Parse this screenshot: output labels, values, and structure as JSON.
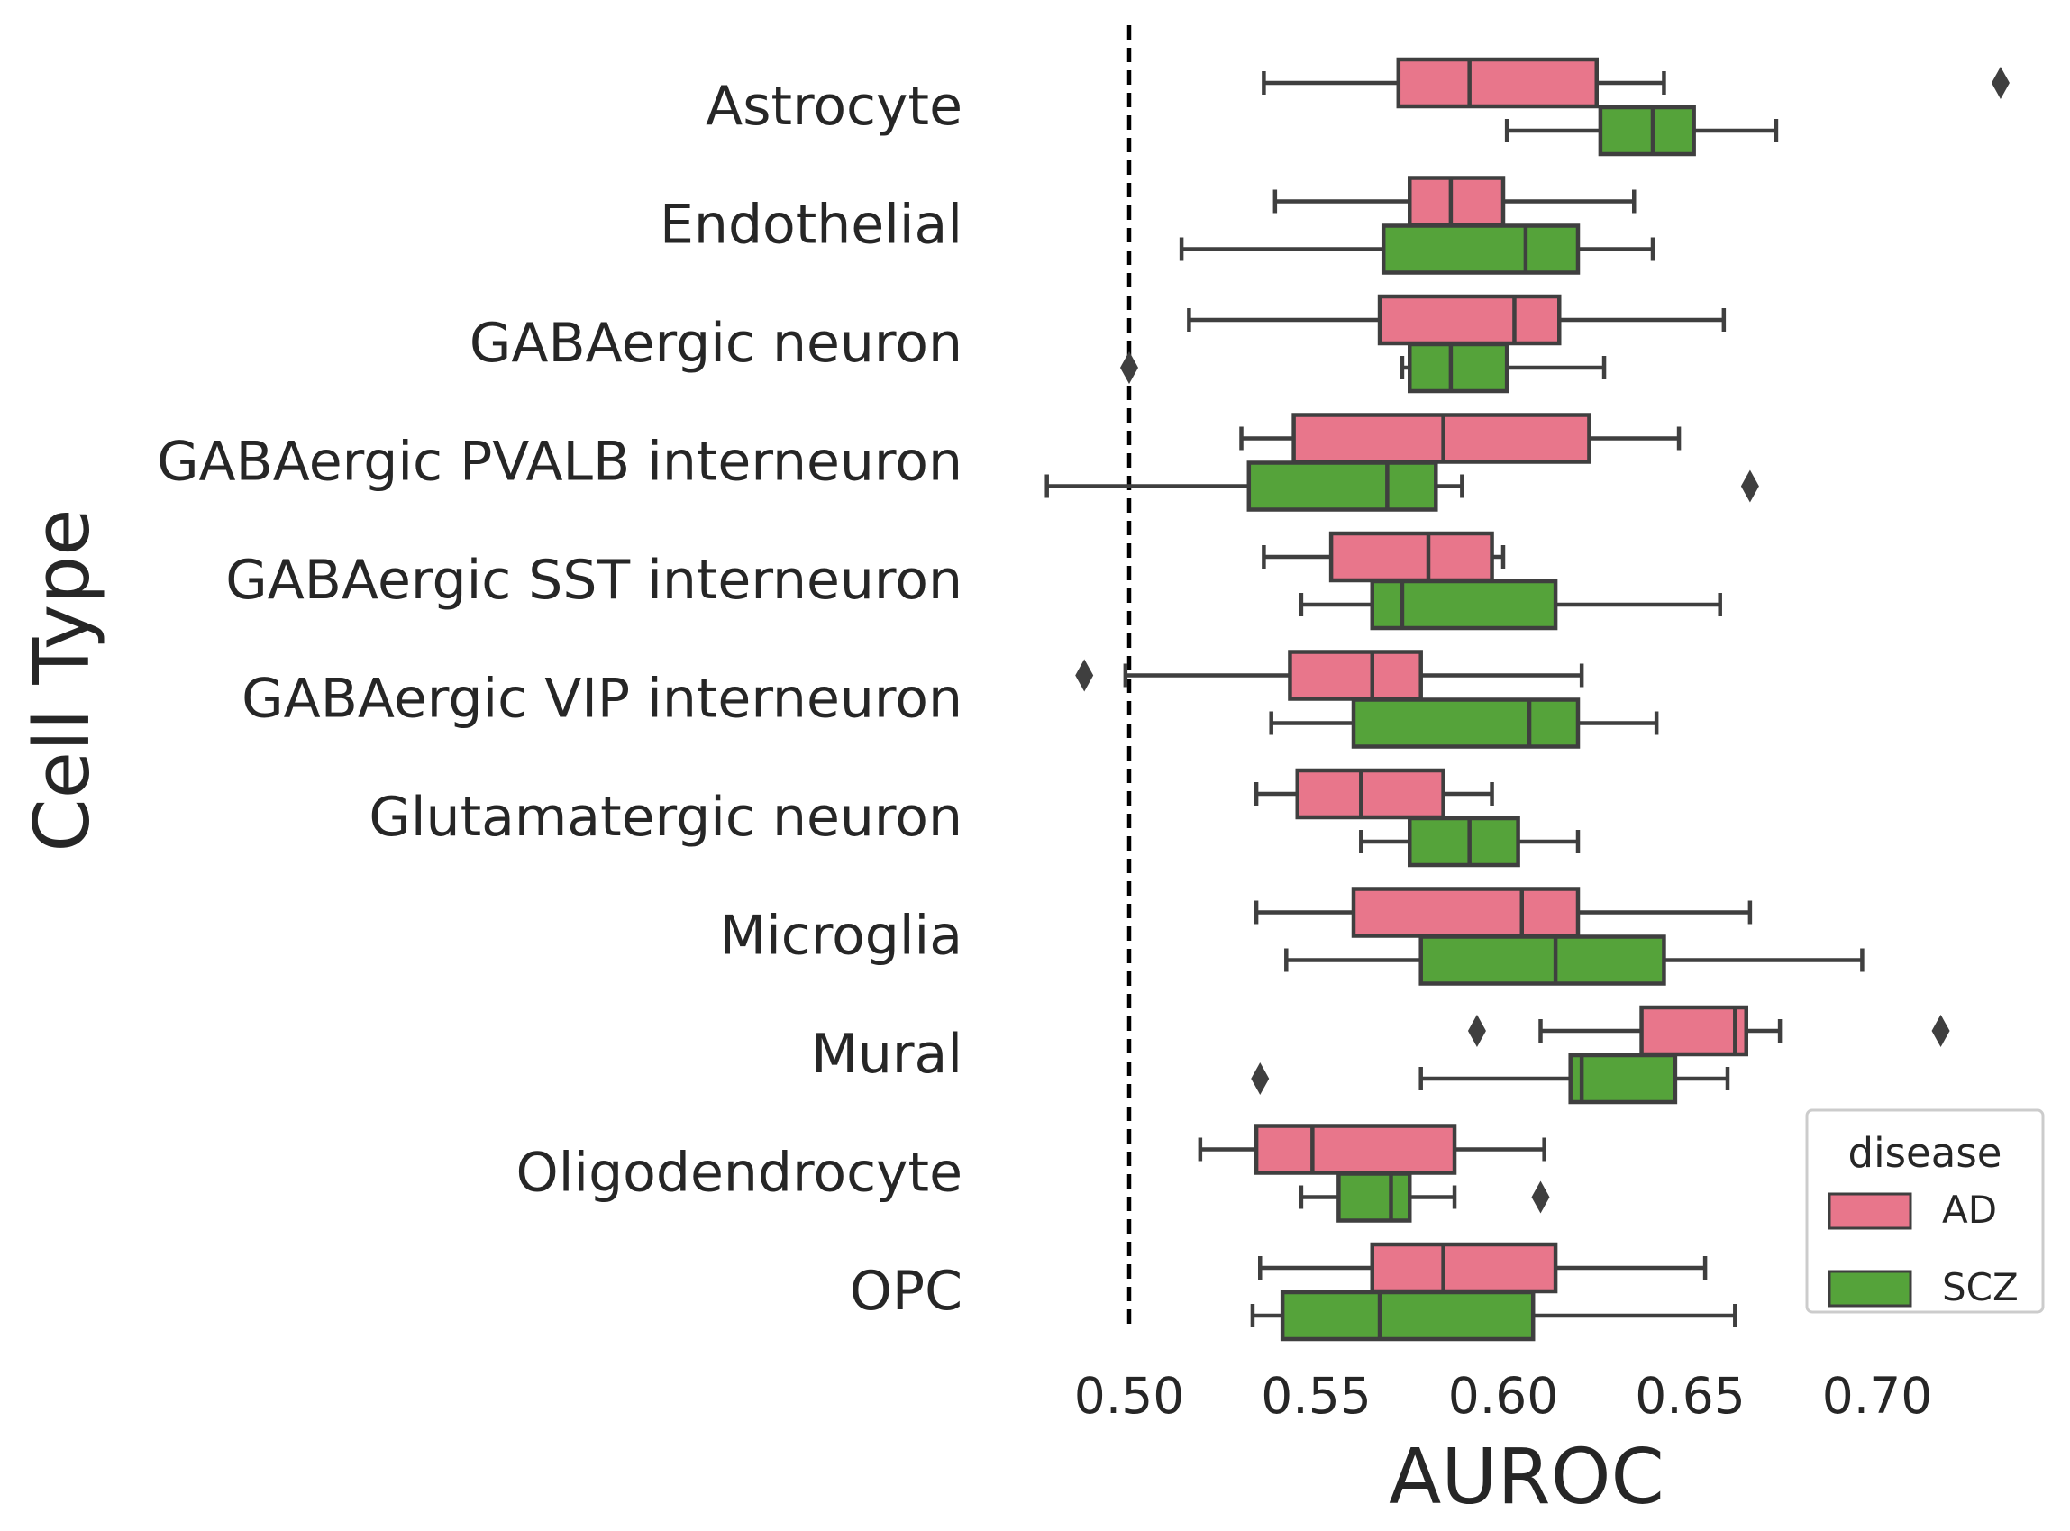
{
  "chart_data": {
    "type": "box",
    "orientation": "horizontal",
    "xlabel": "AUROC",
    "ylabel": "Cell Type",
    "xlim": [
      0.475,
      0.74
    ],
    "xticks": [
      "0.50",
      "0.55",
      "0.60",
      "0.65",
      "0.70"
    ],
    "reference_line": {
      "x": 0.5,
      "style": "dashed"
    },
    "grid": false,
    "categories": [
      "Astrocyte",
      "Endothelial",
      "GABAergic neuron",
      "GABAergic PVALB interneuron",
      "GABAergic SST interneuron",
      "GABAergic VIP interneuron",
      "Glutamatergic neuron",
      "Microglia",
      "Mural",
      "Oligodendrocyte",
      "OPC"
    ],
    "legend": {
      "title": "disease",
      "position": "lower-right"
    },
    "series": [
      {
        "name": "AD",
        "color": "#E8768B",
        "boxes": [
          {
            "whislo": 0.536,
            "q1": 0.572,
            "med": 0.591,
            "q3": 0.625,
            "whishi": 0.643,
            "fliers": [
              0.733
            ]
          },
          {
            "whislo": 0.539,
            "q1": 0.575,
            "med": 0.586,
            "q3": 0.6,
            "whishi": 0.635,
            "fliers": []
          },
          {
            "whislo": 0.516,
            "q1": 0.567,
            "med": 0.603,
            "q3": 0.615,
            "whishi": 0.659,
            "fliers": []
          },
          {
            "whislo": 0.53,
            "q1": 0.544,
            "med": 0.584,
            "q3": 0.623,
            "whishi": 0.647,
            "fliers": []
          },
          {
            "whislo": 0.536,
            "q1": 0.554,
            "med": 0.58,
            "q3": 0.597,
            "whishi": 0.6,
            "fliers": []
          },
          {
            "whislo": 0.499,
            "q1": 0.543,
            "med": 0.565,
            "q3": 0.578,
            "whishi": 0.621,
            "fliers": [
              0.488
            ]
          },
          {
            "whislo": 0.534,
            "q1": 0.545,
            "med": 0.562,
            "q3": 0.584,
            "whishi": 0.597,
            "fliers": []
          },
          {
            "whislo": 0.534,
            "q1": 0.56,
            "med": 0.605,
            "q3": 0.62,
            "whishi": 0.666,
            "fliers": []
          },
          {
            "whislo": 0.61,
            "q1": 0.637,
            "med": 0.662,
            "q3": 0.665,
            "whishi": 0.674,
            "fliers": [
              0.593,
              0.717
            ]
          },
          {
            "whislo": 0.519,
            "q1": 0.534,
            "med": 0.549,
            "q3": 0.587,
            "whishi": 0.611,
            "fliers": []
          },
          {
            "whislo": 0.535,
            "q1": 0.565,
            "med": 0.584,
            "q3": 0.614,
            "whishi": 0.654,
            "fliers": []
          }
        ]
      },
      {
        "name": "SCZ",
        "color": "#55A33A",
        "boxes": [
          {
            "whislo": 0.601,
            "q1": 0.626,
            "med": 0.64,
            "q3": 0.651,
            "whishi": 0.673,
            "fliers": []
          },
          {
            "whislo": 0.514,
            "q1": 0.568,
            "med": 0.606,
            "q3": 0.62,
            "whishi": 0.64,
            "fliers": []
          },
          {
            "whislo": 0.573,
            "q1": 0.575,
            "med": 0.586,
            "q3": 0.601,
            "whishi": 0.627,
            "fliers": [
              0.5
            ]
          },
          {
            "whislo": 0.478,
            "q1": 0.532,
            "med": 0.569,
            "q3": 0.582,
            "whishi": 0.589,
            "fliers": [
              0.666
            ]
          },
          {
            "whislo": 0.546,
            "q1": 0.565,
            "med": 0.573,
            "q3": 0.614,
            "whishi": 0.658,
            "fliers": []
          },
          {
            "whislo": 0.538,
            "q1": 0.56,
            "med": 0.607,
            "q3": 0.62,
            "whishi": 0.641,
            "fliers": []
          },
          {
            "whislo": 0.562,
            "q1": 0.575,
            "med": 0.591,
            "q3": 0.604,
            "whishi": 0.62,
            "fliers": []
          },
          {
            "whislo": 0.542,
            "q1": 0.578,
            "med": 0.614,
            "q3": 0.643,
            "whishi": 0.696,
            "fliers": []
          },
          {
            "whislo": 0.578,
            "q1": 0.618,
            "med": 0.621,
            "q3": 0.646,
            "whishi": 0.66,
            "fliers": [
              0.535
            ]
          },
          {
            "whislo": 0.546,
            "q1": 0.556,
            "med": 0.57,
            "q3": 0.575,
            "whishi": 0.587,
            "fliers": [
              0.61
            ]
          },
          {
            "whislo": 0.533,
            "q1": 0.541,
            "med": 0.567,
            "q3": 0.608,
            "whishi": 0.662,
            "fliers": []
          }
        ]
      }
    ]
  }
}
